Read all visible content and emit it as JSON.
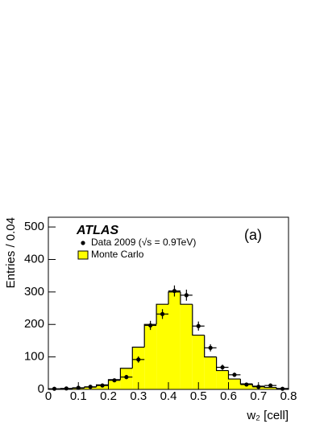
{
  "chart_data": {
    "type": "histogram",
    "annotations": [
      "ATLAS",
      "(a)"
    ],
    "x_label": "w₂ [cell]",
    "y_label": "Entries / 0.04",
    "bins": [
      0,
      0.04,
      0.08,
      0.12,
      0.16,
      0.2,
      0.24,
      0.28,
      0.32,
      0.36,
      0.4,
      0.44,
      0.48,
      0.52,
      0.56,
      0.6,
      0.64,
      0.68,
      0.72,
      0.76,
      0.8
    ],
    "series": [
      {
        "name": "Data 2009 (√s = 0.9TeV)",
        "color": "#000000",
        "style": "points",
        "values": [
          2,
          3,
          5,
          8,
          12,
          28,
          38,
          92,
          197,
          232,
          303,
          290,
          195,
          128,
          68,
          45,
          15,
          8,
          12,
          2
        ],
        "errors": [
          1.4,
          1.7,
          2.2,
          2.8,
          3.5,
          5.3,
          6.2,
          9.6,
          14,
          15,
          17,
          17,
          14,
          11,
          8.2,
          6.7,
          3.9,
          2.8,
          3.5,
          1.4
        ]
      },
      {
        "name": "Monte Carlo",
        "color": "#ffff00",
        "style": "filled",
        "values": [
          1,
          2,
          4,
          7,
          14,
          30,
          65,
          130,
          200,
          262,
          300,
          262,
          167,
          100,
          58,
          32,
          17,
          10,
          6,
          3
        ]
      }
    ],
    "xlim": [
      0,
      0.8
    ],
    "xticks": [
      0,
      0.1,
      0.2,
      0.3,
      0.4,
      0.5,
      0.6,
      0.7,
      0.8
    ],
    "ylim": [
      0,
      530
    ],
    "yticks": [
      0,
      100,
      200,
      300,
      400,
      500
    ],
    "grid": false
  }
}
